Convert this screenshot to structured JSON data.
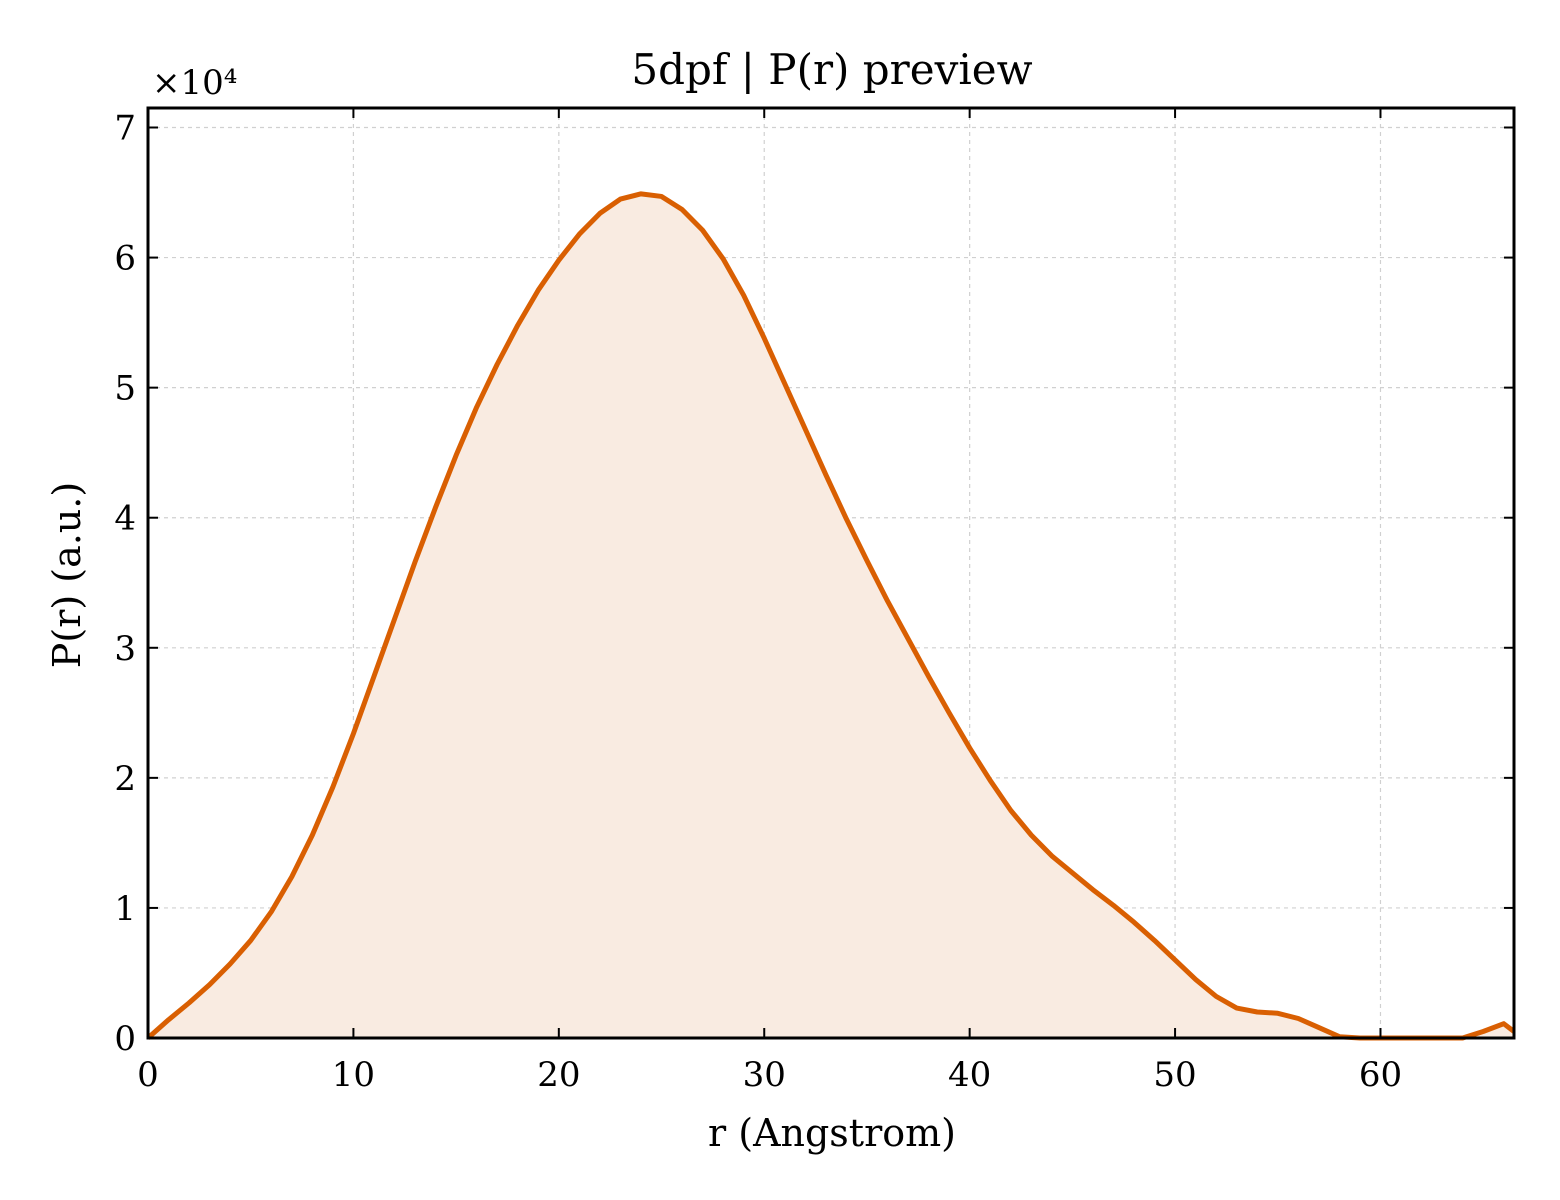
{
  "chart_data": {
    "type": "area",
    "title": "5dpf | P(r) preview",
    "xlabel": "r (Angstrom)",
    "ylabel": "P(r) (a.u.)",
    "y_multiplier_label": "×10⁴",
    "y_scale_factor": 10000,
    "xlim": [
      0,
      66.5
    ],
    "ylim": [
      0,
      71500
    ],
    "x_ticks": [
      0,
      10,
      20,
      30,
      40,
      50,
      60
    ],
    "y_ticks": [
      0,
      10000,
      20000,
      30000,
      40000,
      50000,
      60000,
      70000
    ],
    "grid": true,
    "line_color": "#d95f02",
    "fill_color": "#f9ebe1",
    "series": [
      {
        "x": [
          0,
          1,
          2,
          3,
          4,
          5,
          6,
          7,
          8,
          9,
          10,
          11,
          12,
          13,
          14,
          15,
          16,
          17,
          18,
          19,
          20,
          21,
          22,
          23,
          24,
          25,
          26,
          27,
          28,
          29,
          30,
          31,
          32,
          33,
          34,
          35,
          36,
          37,
          38,
          39,
          40,
          41,
          42,
          43,
          44,
          45,
          46,
          47,
          48,
          49,
          50,
          51,
          52,
          53,
          54,
          55,
          56,
          57,
          58,
          59,
          60,
          61,
          62,
          63,
          64,
          65,
          66,
          66.5
        ],
        "values": [
          0,
          1400,
          2700,
          4100,
          5700,
          7500,
          9700,
          12400,
          15600,
          19300,
          23400,
          27800,
          32200,
          36600,
          40800,
          44800,
          48500,
          51800,
          54800,
          57500,
          59800,
          61800,
          63400,
          64500,
          64900,
          64700,
          63700,
          62100,
          59900,
          57100,
          53800,
          50300,
          46800,
          43300,
          39900,
          36700,
          33600,
          30700,
          27800,
          25000,
          22300,
          19800,
          17500,
          15600,
          14000,
          12700,
          11400,
          10200,
          8900,
          7500,
          6000,
          4500,
          3200,
          2300,
          2000,
          1900,
          1500,
          800,
          100,
          0,
          0,
          0,
          0,
          0,
          0,
          500,
          1100,
          500
        ]
      }
    ]
  }
}
